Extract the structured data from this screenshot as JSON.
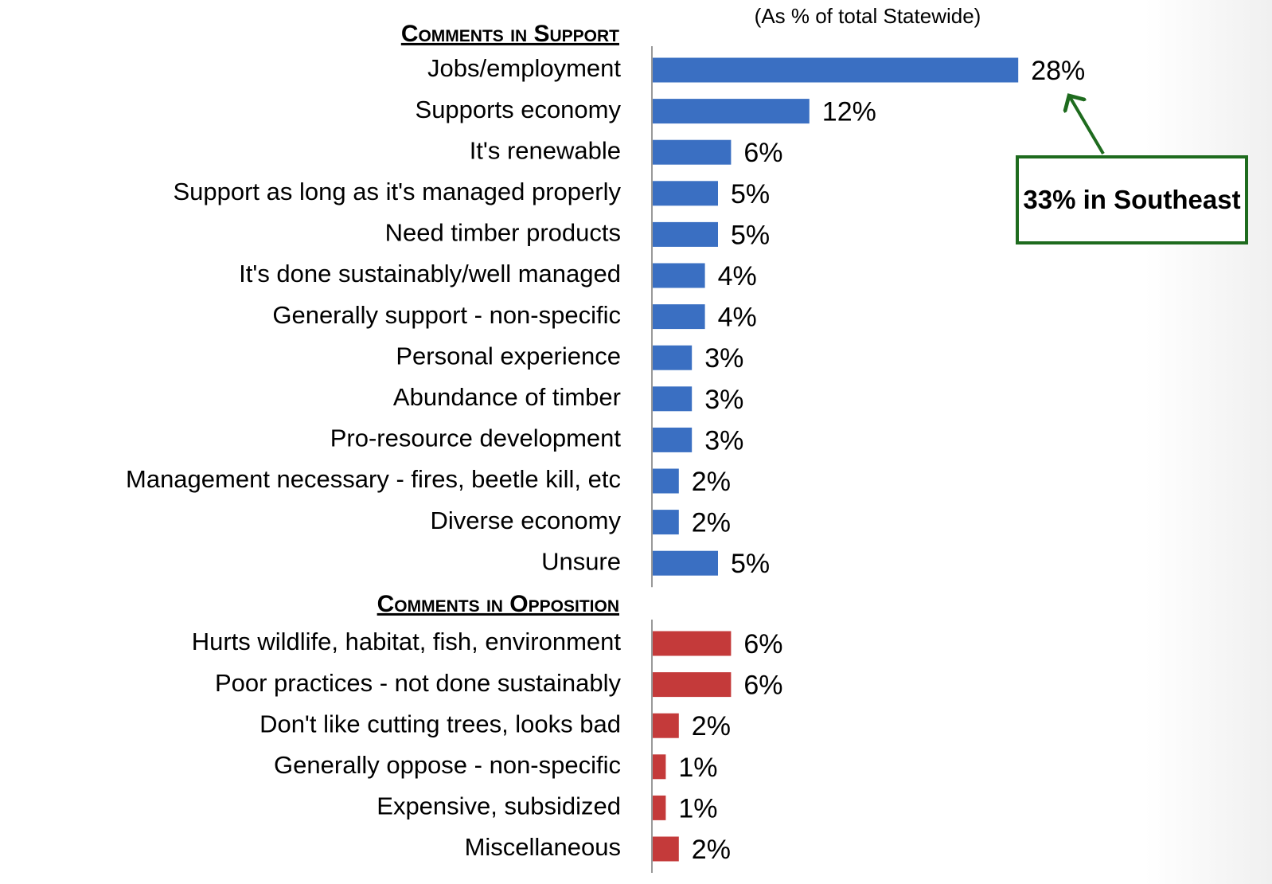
{
  "chart_data": [
    {
      "type": "bar",
      "title": "Comments in Support",
      "subtitle": "(As % of total Statewide)",
      "categories": [
        "Jobs/employment",
        "Supports economy",
        "It's renewable",
        "Support as long as it's managed properly",
        "Need timber products",
        "It's done sustainably/well managed",
        "Generally support - non-specific",
        "Personal experience",
        "Abundance of timber",
        "Pro-resource development",
        "Management necessary - fires, beetle kill, etc",
        "Diverse economy",
        "Unsure"
      ],
      "values": [
        28,
        12,
        6,
        5,
        5,
        4,
        4,
        3,
        3,
        3,
        2,
        2,
        5
      ],
      "value_labels": [
        "28%",
        "12%",
        "6%",
        "5%",
        "5%",
        "4%",
        "4%",
        "3%",
        "3%",
        "3%",
        "2%",
        "2%",
        "5%"
      ],
      "color": "#3a6fc2",
      "annotation": "33% in Southeast"
    },
    {
      "type": "bar",
      "title": "Comments in Opposition",
      "categories": [
        "Hurts wildlife, habitat, fish, environment",
        "Poor practices - not done sustainably",
        "Don't like cutting trees, looks bad",
        "Generally oppose - non-specific",
        "Expensive, subsidized",
        "Miscellaneous"
      ],
      "values": [
        6,
        6,
        2,
        1,
        1,
        2
      ],
      "value_labels": [
        "6%",
        "6%",
        "2%",
        "1%",
        "1%",
        "2%"
      ],
      "color": "#c43a3a"
    }
  ]
}
